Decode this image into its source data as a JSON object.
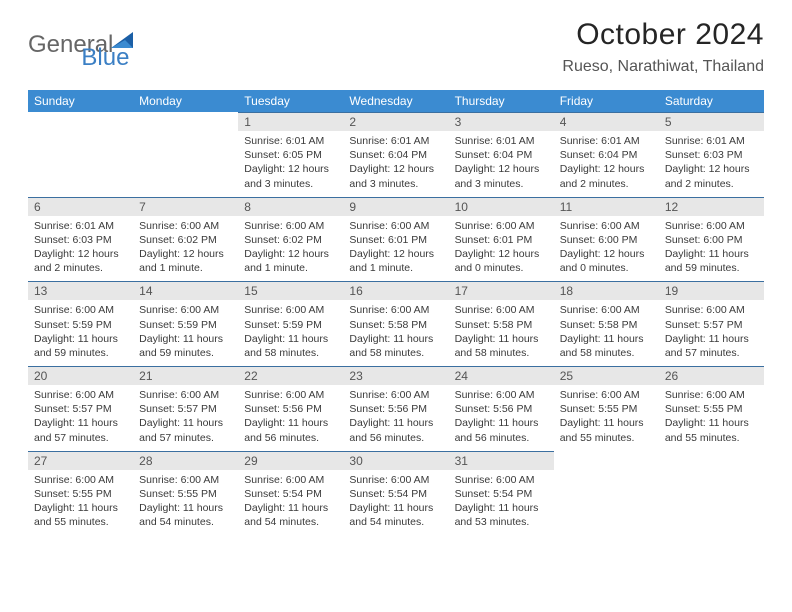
{
  "logo": {
    "word1": "General",
    "word2": "Blue"
  },
  "title": "October 2024",
  "location": "Rueso, Narathiwat, Thailand",
  "colors": {
    "header_bg": "#3b8bd1",
    "header_text": "#ffffff",
    "daynum_bg": "#e7e7e7",
    "daynum_border": "#3b6fa0",
    "logo_grey": "#666666",
    "logo_blue": "#3b7fc4"
  },
  "dow": [
    "Sunday",
    "Monday",
    "Tuesday",
    "Wednesday",
    "Thursday",
    "Friday",
    "Saturday"
  ],
  "weeks": [
    [
      null,
      null,
      {
        "n": "1",
        "sr": "6:01 AM",
        "ss": "6:05 PM",
        "dl": "12 hours and 3 minutes."
      },
      {
        "n": "2",
        "sr": "6:01 AM",
        "ss": "6:04 PM",
        "dl": "12 hours and 3 minutes."
      },
      {
        "n": "3",
        "sr": "6:01 AM",
        "ss": "6:04 PM",
        "dl": "12 hours and 3 minutes."
      },
      {
        "n": "4",
        "sr": "6:01 AM",
        "ss": "6:04 PM",
        "dl": "12 hours and 2 minutes."
      },
      {
        "n": "5",
        "sr": "6:01 AM",
        "ss": "6:03 PM",
        "dl": "12 hours and 2 minutes."
      }
    ],
    [
      {
        "n": "6",
        "sr": "6:01 AM",
        "ss": "6:03 PM",
        "dl": "12 hours and 2 minutes."
      },
      {
        "n": "7",
        "sr": "6:00 AM",
        "ss": "6:02 PM",
        "dl": "12 hours and 1 minute."
      },
      {
        "n": "8",
        "sr": "6:00 AM",
        "ss": "6:02 PM",
        "dl": "12 hours and 1 minute."
      },
      {
        "n": "9",
        "sr": "6:00 AM",
        "ss": "6:01 PM",
        "dl": "12 hours and 1 minute."
      },
      {
        "n": "10",
        "sr": "6:00 AM",
        "ss": "6:01 PM",
        "dl": "12 hours and 0 minutes."
      },
      {
        "n": "11",
        "sr": "6:00 AM",
        "ss": "6:00 PM",
        "dl": "12 hours and 0 minutes."
      },
      {
        "n": "12",
        "sr": "6:00 AM",
        "ss": "6:00 PM",
        "dl": "11 hours and 59 minutes."
      }
    ],
    [
      {
        "n": "13",
        "sr": "6:00 AM",
        "ss": "5:59 PM",
        "dl": "11 hours and 59 minutes."
      },
      {
        "n": "14",
        "sr": "6:00 AM",
        "ss": "5:59 PM",
        "dl": "11 hours and 59 minutes."
      },
      {
        "n": "15",
        "sr": "6:00 AM",
        "ss": "5:59 PM",
        "dl": "11 hours and 58 minutes."
      },
      {
        "n": "16",
        "sr": "6:00 AM",
        "ss": "5:58 PM",
        "dl": "11 hours and 58 minutes."
      },
      {
        "n": "17",
        "sr": "6:00 AM",
        "ss": "5:58 PM",
        "dl": "11 hours and 58 minutes."
      },
      {
        "n": "18",
        "sr": "6:00 AM",
        "ss": "5:58 PM",
        "dl": "11 hours and 58 minutes."
      },
      {
        "n": "19",
        "sr": "6:00 AM",
        "ss": "5:57 PM",
        "dl": "11 hours and 57 minutes."
      }
    ],
    [
      {
        "n": "20",
        "sr": "6:00 AM",
        "ss": "5:57 PM",
        "dl": "11 hours and 57 minutes."
      },
      {
        "n": "21",
        "sr": "6:00 AM",
        "ss": "5:57 PM",
        "dl": "11 hours and 57 minutes."
      },
      {
        "n": "22",
        "sr": "6:00 AM",
        "ss": "5:56 PM",
        "dl": "11 hours and 56 minutes."
      },
      {
        "n": "23",
        "sr": "6:00 AM",
        "ss": "5:56 PM",
        "dl": "11 hours and 56 minutes."
      },
      {
        "n": "24",
        "sr": "6:00 AM",
        "ss": "5:56 PM",
        "dl": "11 hours and 56 minutes."
      },
      {
        "n": "25",
        "sr": "6:00 AM",
        "ss": "5:55 PM",
        "dl": "11 hours and 55 minutes."
      },
      {
        "n": "26",
        "sr": "6:00 AM",
        "ss": "5:55 PM",
        "dl": "11 hours and 55 minutes."
      }
    ],
    [
      {
        "n": "27",
        "sr": "6:00 AM",
        "ss": "5:55 PM",
        "dl": "11 hours and 55 minutes."
      },
      {
        "n": "28",
        "sr": "6:00 AM",
        "ss": "5:55 PM",
        "dl": "11 hours and 54 minutes."
      },
      {
        "n": "29",
        "sr": "6:00 AM",
        "ss": "5:54 PM",
        "dl": "11 hours and 54 minutes."
      },
      {
        "n": "30",
        "sr": "6:00 AM",
        "ss": "5:54 PM",
        "dl": "11 hours and 54 minutes."
      },
      {
        "n": "31",
        "sr": "6:00 AM",
        "ss": "5:54 PM",
        "dl": "11 hours and 53 minutes."
      },
      null,
      null
    ]
  ],
  "labels": {
    "sunrise": "Sunrise:",
    "sunset": "Sunset:",
    "daylight": "Daylight:"
  }
}
